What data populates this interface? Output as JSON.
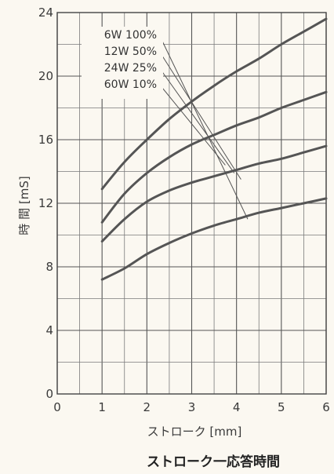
{
  "chart_data": {
    "type": "line",
    "title": "ストローク一応答時間",
    "xlabel": "ストローク [mm]",
    "ylabel": "時 間 [mS]",
    "xlim": [
      0,
      6
    ],
    "ylim": [
      0,
      24
    ],
    "x_ticks": [
      0,
      1,
      2,
      3,
      4,
      5,
      6
    ],
    "y_ticks": [
      0,
      4,
      8,
      12,
      16,
      20,
      24
    ],
    "grid": true,
    "legend_position": "top-left",
    "series": [
      {
        "name": "6W 100%",
        "x": [
          1,
          1.5,
          2,
          2.5,
          3,
          3.5,
          4,
          4.5,
          5,
          5.5,
          6
        ],
        "y": [
          12.9,
          14.6,
          16.0,
          17.3,
          18.4,
          19.4,
          20.3,
          21.1,
          22.0,
          22.8,
          23.6
        ]
      },
      {
        "name": "12W 50%",
        "x": [
          1,
          1.5,
          2,
          2.5,
          3,
          3.5,
          4,
          4.5,
          5,
          5.5,
          6
        ],
        "y": [
          10.8,
          12.6,
          13.9,
          14.9,
          15.7,
          16.3,
          16.9,
          17.4,
          18.0,
          18.5,
          19.0
        ]
      },
      {
        "name": "24W 25%",
        "x": [
          1,
          1.5,
          2,
          2.5,
          3,
          3.5,
          4,
          4.5,
          5,
          5.5,
          6
        ],
        "y": [
          9.6,
          11.0,
          12.1,
          12.8,
          13.3,
          13.7,
          14.1,
          14.5,
          14.8,
          15.2,
          15.6
        ]
      },
      {
        "name": "60W 10%",
        "x": [
          1,
          1.5,
          2,
          2.5,
          3,
          3.5,
          4,
          4.5,
          5,
          5.5,
          6
        ],
        "y": [
          7.2,
          7.9,
          8.8,
          9.5,
          10.1,
          10.6,
          11.0,
          11.4,
          11.7,
          12.0,
          12.3
        ]
      }
    ],
    "line_color": "#555555"
  }
}
